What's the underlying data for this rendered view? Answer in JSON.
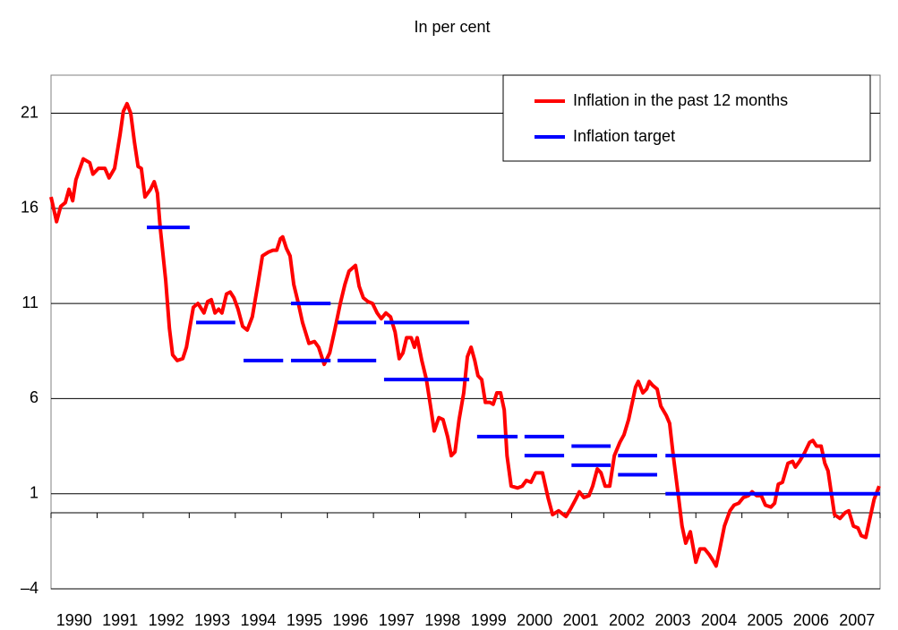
{
  "chart_data": {
    "type": "line",
    "title": "In per cent",
    "xlim": [
      1990,
      2008
    ],
    "xticks": [
      1990,
      1991,
      1992,
      1993,
      1994,
      1995,
      1996,
      1997,
      1998,
      1999,
      2000,
      2001,
      2002,
      2003,
      2004,
      2005,
      2006,
      2007,
      2008
    ],
    "categories": [
      "1990",
      "1991",
      "1992",
      "1993",
      "1994",
      "1995",
      "1996",
      "1997",
      "1998",
      "1999",
      "2000",
      "2001",
      "2002",
      "2003",
      "2004",
      "2005",
      "2006",
      "2007"
    ],
    "ylim": [
      -4,
      23
    ],
    "yticks": [
      {
        "value": -4,
        "label": "–4"
      },
      1,
      6,
      11,
      16,
      21
    ],
    "grid": true,
    "legend": "top-right",
    "series": [
      {
        "name": "Inflation in the past 12 months",
        "color": "#ff0000",
        "x": [
          1990.0,
          1990.12,
          1990.21,
          1990.31,
          1990.39,
          1990.47,
          1990.54,
          1990.7,
          1990.84,
          1990.91,
          1991.03,
          1991.17,
          1991.26,
          1991.38,
          1991.5,
          1991.57,
          1991.65,
          1991.73,
          1991.81,
          1991.89,
          1991.96,
          1992.04,
          1992.16,
          1992.24,
          1992.31,
          1992.37,
          1992.49,
          1992.57,
          1992.64,
          1992.74,
          1992.86,
          1992.94,
          1993.01,
          1993.09,
          1993.19,
          1993.32,
          1993.4,
          1993.48,
          1993.56,
          1993.64,
          1993.71,
          1993.81,
          1993.89,
          1993.97,
          1994.06,
          1994.16,
          1994.26,
          1994.37,
          1994.49,
          1994.59,
          1994.72,
          1994.82,
          1994.9,
          1994.98,
          1995.03,
          1995.11,
          1995.19,
          1995.27,
          1995.37,
          1995.46,
          1995.6,
          1995.72,
          1995.81,
          1995.93,
          1996.05,
          1996.16,
          1996.28,
          1996.38,
          1996.47,
          1996.61,
          1996.69,
          1996.78,
          1996.88,
          1996.98,
          1997.08,
          1997.17,
          1997.27,
          1997.37,
          1997.47,
          1997.56,
          1997.64,
          1997.72,
          1997.82,
          1997.89,
          1997.95,
          1998.05,
          1998.15,
          1998.24,
          1998.32,
          1998.42,
          1998.51,
          1998.61,
          1998.69,
          1998.77,
          1998.86,
          1998.96,
          1999.04,
          1999.12,
          1999.2,
          1999.27,
          1999.35,
          1999.43,
          1999.53,
          1999.6,
          1999.68,
          1999.76,
          1999.84,
          1999.9,
          1999.99,
          2000.13,
          2000.23,
          2000.32,
          2000.42,
          2000.52,
          2000.67,
          2000.79,
          2000.89,
          2001.02,
          2001.18,
          2001.28,
          2001.39,
          2001.47,
          2001.57,
          2001.68,
          2001.76,
          2001.86,
          2001.94,
          2002.03,
          2002.13,
          2002.23,
          2002.35,
          2002.44,
          2002.54,
          2002.62,
          2002.69,
          2002.75,
          2002.85,
          2002.93,
          2002.99,
          2003.06,
          2003.16,
          2003.24,
          2003.36,
          2003.43,
          2003.51,
          2003.63,
          2003.7,
          2003.78,
          2003.88,
          2004.0,
          2004.09,
          2004.19,
          2004.29,
          2004.37,
          2004.44,
          2004.52,
          2004.62,
          2004.74,
          2004.83,
          2004.93,
          2005.03,
          2005.14,
          2005.22,
          2005.32,
          2005.42,
          2005.51,
          2005.63,
          2005.71,
          2005.79,
          2005.88,
          2006.0,
          2006.1,
          2006.16,
          2006.25,
          2006.35,
          2006.47,
          2006.54,
          2006.62,
          2006.72,
          2006.8,
          2006.87,
          2007.01,
          2007.13,
          2007.24,
          2007.32,
          2007.42,
          2007.52,
          2007.59,
          2007.69,
          2007.77,
          2007.87,
          2007.98
        ],
        "values": [
          16.6,
          15.3,
          16.1,
          16.3,
          17.0,
          16.4,
          17.5,
          18.6,
          18.4,
          17.8,
          18.1,
          18.1,
          17.6,
          18.1,
          19.9,
          21.1,
          21.5,
          21.0,
          19.5,
          18.2,
          18.1,
          16.6,
          17.0,
          17.4,
          16.8,
          15.0,
          12.2,
          9.7,
          8.3,
          8.0,
          8.1,
          8.7,
          9.7,
          10.8,
          11.0,
          10.5,
          11.1,
          11.2,
          10.5,
          10.7,
          10.5,
          11.5,
          11.6,
          11.3,
          10.7,
          9.8,
          9.6,
          10.3,
          12.0,
          13.5,
          13.7,
          13.8,
          13.8,
          14.4,
          14.5,
          13.9,
          13.5,
          12.0,
          11.0,
          10.0,
          8.9,
          9.0,
          8.7,
          7.8,
          8.4,
          9.6,
          11.0,
          12.0,
          12.7,
          13.0,
          11.9,
          11.3,
          11.1,
          11.0,
          10.5,
          10.2,
          10.5,
          10.3,
          9.5,
          8.1,
          8.4,
          9.2,
          9.2,
          8.7,
          9.2,
          8.0,
          7.0,
          5.6,
          4.3,
          5.0,
          4.9,
          4.0,
          3.0,
          3.2,
          4.9,
          6.3,
          8.2,
          8.7,
          8.0,
          7.2,
          7.0,
          5.8,
          5.8,
          5.7,
          6.3,
          6.3,
          5.4,
          3.0,
          1.4,
          1.3,
          1.4,
          1.7,
          1.6,
          2.1,
          2.1,
          0.8,
          -0.1,
          0.1,
          -0.2,
          0.2,
          0.7,
          1.1,
          0.8,
          0.9,
          1.4,
          2.3,
          2.1,
          1.4,
          1.4,
          3.0,
          3.7,
          4.1,
          4.9,
          5.8,
          6.6,
          6.9,
          6.3,
          6.5,
          6.9,
          6.7,
          6.5,
          5.6,
          5.1,
          4.7,
          3.0,
          0.7,
          -0.7,
          -1.6,
          -1.0,
          -2.6,
          -1.9,
          -1.9,
          -2.2,
          -2.5,
          -2.8,
          -1.9,
          -0.7,
          0.1,
          0.4,
          0.5,
          0.8,
          0.9,
          1.1,
          0.9,
          0.9,
          0.4,
          0.3,
          0.5,
          1.5,
          1.6,
          2.6,
          2.7,
          2.4,
          2.7,
          3.1,
          3.7,
          3.8,
          3.5,
          3.5,
          2.6,
          2.2,
          -0.1,
          -0.3,
          0.0,
          0.1,
          -0.7,
          -0.8,
          -1.2,
          -1.3,
          -0.4,
          0.7,
          1.4
        ]
      },
      {
        "name": "Inflation target",
        "color": "#0000ff",
        "segments": [
          {
            "start": 1992.08,
            "end": 1993.01,
            "value": 15
          },
          {
            "start": 1993.15,
            "end": 1994.0,
            "value": 10
          },
          {
            "start": 1994.18,
            "end": 1995.04,
            "value": 8
          },
          {
            "start": 1995.21,
            "end": 1996.07,
            "value": 11
          },
          {
            "start": 1995.21,
            "end": 1996.07,
            "value": 8
          },
          {
            "start": 1996.22,
            "end": 1997.06,
            "value": 10
          },
          {
            "start": 1996.22,
            "end": 1997.06,
            "value": 8
          },
          {
            "start": 1997.23,
            "end": 1999.08,
            "value": 10
          },
          {
            "start": 1997.23,
            "end": 1999.08,
            "value": 7
          },
          {
            "start": 1999.25,
            "end": 2000.13,
            "value": 4
          },
          {
            "start": 2000.28,
            "end": 2001.14,
            "value": 4
          },
          {
            "start": 2000.28,
            "end": 2001.14,
            "value": 3
          },
          {
            "start": 2001.3,
            "end": 2002.15,
            "value": 3.5
          },
          {
            "start": 2001.3,
            "end": 2002.15,
            "value": 2.5
          },
          {
            "start": 2002.31,
            "end": 2003.16,
            "value": 3
          },
          {
            "start": 2002.31,
            "end": 2003.16,
            "value": 2
          },
          {
            "start": 2003.34,
            "end": 2008.0,
            "value": 3
          },
          {
            "start": 2003.34,
            "end": 2008.0,
            "value": 1
          }
        ]
      }
    ]
  }
}
